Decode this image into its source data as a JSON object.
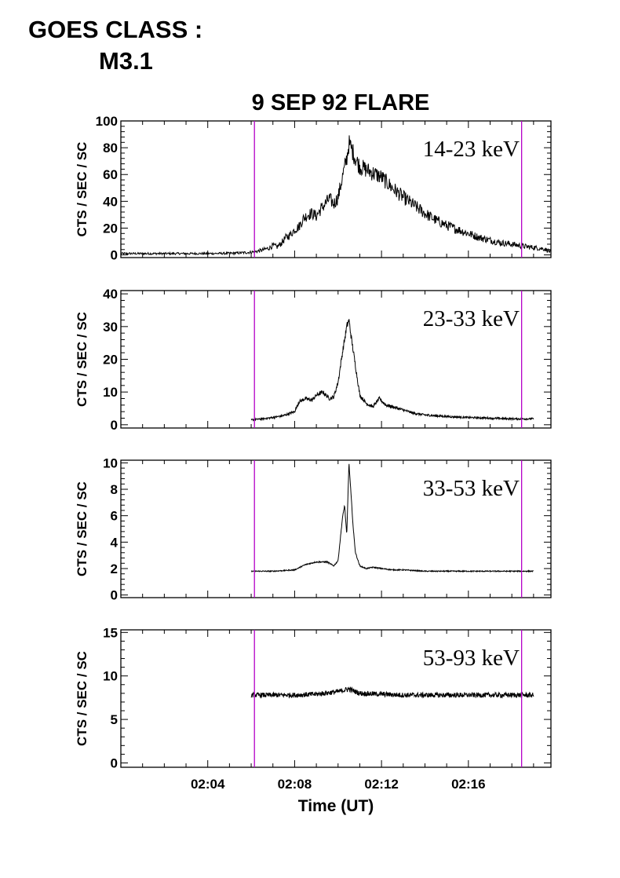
{
  "header": {
    "goes_line1": "GOES CLASS :",
    "goes_line2": "M3.1"
  },
  "chart_data": {
    "type": "line",
    "title": "9 SEP 92 FLARE",
    "xlabel": "Time (UT)",
    "x_unit": "minutes after 02:00 UT",
    "xlim": [
      0,
      19.8
    ],
    "x_ticks": [
      4,
      8,
      12,
      16
    ],
    "x_tick_labels": [
      "02:04",
      "02:08",
      "02:12",
      "02:16"
    ],
    "vertical_markers": [
      6.15,
      18.45
    ],
    "marker_color": "#b400c8",
    "line_color": "#000000",
    "panels": [
      {
        "label": "14-23 keV",
        "ylabel": "CTS / SEC / SC",
        "ylim": [
          -2,
          100
        ],
        "yticks": [
          0,
          20,
          40,
          60,
          80,
          100
        ],
        "series": {
          "x": [
            0,
            2,
            4,
            5,
            5.5,
            6,
            6.2,
            6.5,
            6.8,
            7.0,
            7.2,
            7.4,
            7.6,
            7.8,
            8.0,
            8.2,
            8.4,
            8.6,
            8.8,
            9.0,
            9.2,
            9.4,
            9.6,
            9.8,
            10.0,
            10.2,
            10.4,
            10.5,
            10.6,
            10.8,
            11.0,
            11.5,
            12.0,
            12.5,
            13.0,
            13.5,
            14.0,
            14.5,
            15.0,
            15.5,
            16.0,
            16.5,
            17.0,
            17.5,
            18.0,
            18.5,
            19.0,
            19.5,
            19.8
          ],
          "values": [
            1,
            1,
            1,
            1.2,
            1.5,
            2,
            2.5,
            3.5,
            5,
            7,
            6,
            9,
            13,
            15,
            19,
            21,
            27,
            30,
            31,
            29,
            34,
            38,
            42,
            38,
            43,
            58,
            72,
            83,
            80,
            72,
            66,
            62,
            58,
            50,
            43,
            37,
            31,
            26,
            22,
            19,
            16,
            13,
            11,
            9,
            8,
            6.5,
            5.5,
            4.5,
            2
          ]
        }
      },
      {
        "label": "23-33 keV",
        "ylabel": "CTS / SEC / SC",
        "ylim": [
          -1,
          41
        ],
        "yticks": [
          0,
          10,
          20,
          30,
          40
        ],
        "series": {
          "x": [
            6.0,
            6.5,
            7.0,
            7.5,
            8.0,
            8.2,
            8.5,
            8.8,
            9.0,
            9.3,
            9.6,
            9.8,
            10.0,
            10.2,
            10.4,
            10.5,
            10.6,
            10.8,
            11.0,
            11.3,
            11.6,
            11.9,
            12.2,
            12.5,
            13.0,
            13.5,
            14.0,
            15.0,
            16.0,
            17.0,
            18.0,
            18.5,
            19.0
          ],
          "values": [
            1.5,
            1.8,
            2.2,
            2.8,
            4,
            7,
            8,
            7.5,
            9,
            10,
            8,
            8.5,
            13,
            22,
            30,
            32,
            27,
            18,
            9,
            6.5,
            5.5,
            8,
            6,
            5.5,
            4.5,
            3.5,
            3,
            2.5,
            2.2,
            2,
            1.8,
            1.8,
            1.8
          ]
        }
      },
      {
        "label": "33-53 keV",
        "ylabel": "CTS / SEC / SC",
        "ylim": [
          -0.2,
          10.2
        ],
        "yticks": [
          0,
          2,
          4,
          6,
          8,
          10
        ],
        "series": {
          "x": [
            6.0,
            7.0,
            8.0,
            8.5,
            9.0,
            9.5,
            9.8,
            10.0,
            10.2,
            10.3,
            10.4,
            10.5,
            10.6,
            10.7,
            10.8,
            11.0,
            11.3,
            11.6,
            12.0,
            12.5,
            13.0,
            14.0,
            15.0,
            16.0,
            17.0,
            18.0,
            18.5,
            19.0
          ],
          "values": [
            1.8,
            1.8,
            1.9,
            2.3,
            2.5,
            2.5,
            2.2,
            2.6,
            5.8,
            6.8,
            4.5,
            10.0,
            7.5,
            5.0,
            3.2,
            2.2,
            2.0,
            2.1,
            2.0,
            1.9,
            1.9,
            1.8,
            1.8,
            1.8,
            1.8,
            1.8,
            1.8,
            1.8
          ]
        }
      },
      {
        "label": "53-93 keV",
        "ylabel": "CTS / SEC / SC",
        "ylim": [
          -0.5,
          15.3
        ],
        "yticks": [
          0,
          5,
          10,
          15
        ],
        "series": {
          "x": [
            6.0,
            7.0,
            8.0,
            9.0,
            10.0,
            10.5,
            11.0,
            12.0,
            13.0,
            14.0,
            15.0,
            16.0,
            17.0,
            18.0,
            19.0
          ],
          "values": [
            7.8,
            7.8,
            7.8,
            7.9,
            8.2,
            8.5,
            8.0,
            7.9,
            7.8,
            7.8,
            7.8,
            7.8,
            7.8,
            7.8,
            7.8
          ]
        }
      }
    ]
  }
}
